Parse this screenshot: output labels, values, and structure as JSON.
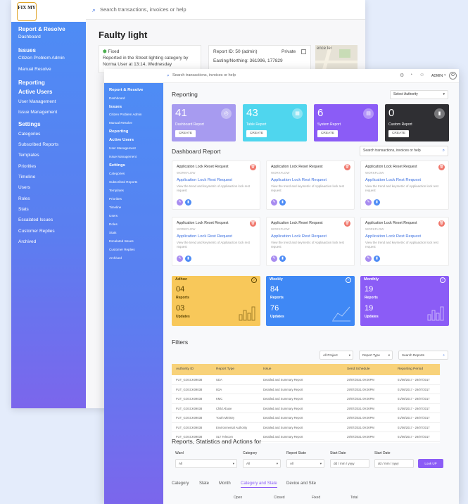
{
  "back": {
    "logo": "FIX MY",
    "search_placeholder": "Search transactions, invoices or help",
    "sidebar": [
      {
        "label": "Report & Resolve",
        "heading": true
      },
      {
        "label": "Dashboard",
        "heading": false
      },
      {
        "label": "Issues",
        "heading": true
      },
      {
        "label": "Citizen Problem Admin",
        "heading": false
      },
      {
        "label": "Manual Resolve",
        "heading": false
      },
      {
        "label": "Reporting",
        "heading": true
      },
      {
        "label": "Active Users",
        "heading": true
      },
      {
        "label": "User Management",
        "heading": false
      },
      {
        "label": "Issue Management",
        "heading": false
      },
      {
        "label": "Settings",
        "heading": true
      },
      {
        "label": "Categories",
        "heading": false
      },
      {
        "label": "Subscribed Reports",
        "heading": false
      },
      {
        "label": "Templates",
        "heading": false
      },
      {
        "label": "Priorities",
        "heading": false
      },
      {
        "label": "Timeline",
        "heading": false
      },
      {
        "label": "Users",
        "heading": false
      },
      {
        "label": "Roles",
        "heading": false
      },
      {
        "label": "Stats",
        "heading": false
      },
      {
        "label": "Escalated Issues",
        "heading": false
      },
      {
        "label": "Customer Replies",
        "heading": false
      },
      {
        "label": "Archived",
        "heading": false
      }
    ],
    "page_title": "Faulty light",
    "status": "Fixed",
    "report_text": "Reported in the Street lighting category by Norma User at 13:14, Wednesday",
    "report_id": "Report ID: 50 (admin)",
    "private_label": "Private",
    "easting": "Easting/Northing: 361996, 177829",
    "map_text": "ence ter"
  },
  "front": {
    "search_placeholder": "Search transactions, invoices or help",
    "admin_label": "ADMIN",
    "sidebar": [
      {
        "label": "Report & Resolve",
        "heading": true
      },
      {
        "label": "Dashboard",
        "heading": false
      },
      {
        "label": "Issues",
        "heading": true
      },
      {
        "label": "Citizen Problem Admin",
        "heading": false
      },
      {
        "label": "Manual Resolve",
        "heading": false
      },
      {
        "label": "Reporting",
        "heading": true
      },
      {
        "label": "Active Users",
        "heading": true
      },
      {
        "label": "User Management",
        "heading": false
      },
      {
        "label": "Issue Management",
        "heading": false
      },
      {
        "label": "Settings",
        "heading": true
      },
      {
        "label": "Categories",
        "heading": false
      },
      {
        "label": "Subscribed Reports",
        "heading": false
      },
      {
        "label": "Templates",
        "heading": false
      },
      {
        "label": "Priorities",
        "heading": false
      },
      {
        "label": "Timeline",
        "heading": false
      },
      {
        "label": "Users",
        "heading": false
      },
      {
        "label": "Roles",
        "heading": false
      },
      {
        "label": "Stats",
        "heading": false
      },
      {
        "label": "Escalated Issues",
        "heading": false
      },
      {
        "label": "Customer Replies",
        "heading": false
      },
      {
        "label": "Archived",
        "heading": false
      }
    ],
    "reporting_title": "Reporting",
    "authority_select": "Select Authority",
    "report_cards": [
      {
        "num": "41",
        "label": "Dashboard Report",
        "btn": "CREATE",
        "color": "#a79bf0",
        "icon": "gauge-icon"
      },
      {
        "num": "43",
        "label": "Table Report",
        "btn": "CREATE",
        "color": "#4fd6ee",
        "icon": "table-icon"
      },
      {
        "num": "6",
        "label": "System Report",
        "btn": "CREATE",
        "color": "#8b5cf6",
        "icon": "system-icon"
      },
      {
        "num": "0",
        "label": "Custom Report",
        "btn": "CREATE",
        "color": "#2f2f33",
        "icon": "chart-icon"
      }
    ],
    "dashboard_title": "Dashboard Report",
    "dashboard_search": "Search transactions, invoices or help",
    "dash_cards": [
      {
        "title": "Application Lock Reset Request",
        "tag": "WORKFLOW",
        "link": "Application Lock Rest Request",
        "desc": "View the trend and keymetric of Appliaaction lock rest request"
      },
      {
        "title": "Application Lock Reset Request",
        "tag": "WORKFLOW",
        "link": "Application Lock Rest Request",
        "desc": "View the trend and keymetric of Appliaaction lock rest request"
      },
      {
        "title": "Application Lock Reset Request",
        "tag": "WORKFLOW",
        "link": "Application Lock Rest Request",
        "desc": "View the trend and keymetric of Appliaaction lock rest request"
      },
      {
        "title": "Application Lock Reset Request",
        "tag": "WORKFLOW",
        "link": "Application Lock Rest Request",
        "desc": "View the trend and keymetric of Appliaaction lock rest request"
      },
      {
        "title": "Application Lock Reset Request",
        "tag": "WORKFLOW",
        "link": "Application Lock Rest Request",
        "desc": "View the trend and keymetric of Appliaaction lock rest request"
      },
      {
        "title": "Application Lock Reset Request",
        "tag": "WORKFLOW",
        "link": "Application Lock Rest Request",
        "desc": "View the trend and keymetric of Appliaaction lock rest request"
      }
    ],
    "period_cards": [
      {
        "name": "Adhoc",
        "reports": "04",
        "updates": "03",
        "reports_label": "Reports",
        "updates_label": "Updates",
        "color": "#f8c85a",
        "text": "#5a4300"
      },
      {
        "name": "Weekly",
        "reports": "84",
        "updates": "76",
        "reports_label": "Reports",
        "updates_label": "Updates",
        "color": "#3f88f5",
        "text": "#ffffff"
      },
      {
        "name": "Monthly",
        "reports": "19",
        "updates": "19",
        "reports_label": "Reports",
        "updates_label": "Updates",
        "color": "#8b5cf6",
        "text": "#ffffff"
      }
    ],
    "filters_title": "Filters",
    "filter_project": "All Project",
    "filter_report_type": "Report Type",
    "filter_search": "Search Reports",
    "table_headers": [
      "Authority ID",
      "Report Type",
      "Issue",
      "Send Schedule",
      "Reporting Period"
    ],
    "table_rows": [
      [
        "FUT_GOXCK09038",
        "UDA",
        "Detailed and Summary Report",
        "29/07/2021 09:00PM",
        "01/06/2017 - 29/07/2017"
      ],
      [
        "FUT_GOXCK09038",
        "IIDA",
        "Detailed and Summary Report",
        "29/07/2021 09:00PM",
        "01/06/2017 - 29/07/2017"
      ],
      [
        "FUT_GOXCK09038",
        "KMC",
        "Detailed and Summary Report",
        "29/07/2021 09:00PM",
        "01/06/2017 - 29/07/2017"
      ],
      [
        "FUT_GOXCK09038",
        "Child Abuse",
        "Detailed and Summary Report",
        "29/07/2021 09:00PM",
        "01/06/2017 - 29/07/2017"
      ],
      [
        "FUT_GOXCK09038",
        "Youth Ministry",
        "Detailed and Summary Report",
        "29/07/2021 09:00PM",
        "01/06/2017 - 29/07/2017"
      ],
      [
        "FUT_GOXCK09038",
        "Environmental Authority",
        "Detailed and Summary Report",
        "29/07/2021 09:00PM",
        "01/06/2017 - 29/07/2017"
      ],
      [
        "FUT_GOXCK09038",
        "SLT Telecom",
        "Detailed and Summary Report",
        "29/07/2021 09:00PM",
        "01/06/2017 - 29/07/2017"
      ]
    ],
    "stats_title": "Reports, Statistics and Actions for",
    "form": {
      "ward_label": "Ward",
      "ward_value": "All",
      "category_label": "Category",
      "category_value": "All",
      "state_label": "Report State",
      "state_value": "All",
      "start_label": "Start Date",
      "start_value": "dd / mm / yyyy",
      "end_label": "Start Date",
      "end_value": "dd / mm / yyyy",
      "button": "Look UP"
    },
    "tabs": [
      "Category",
      "State",
      "Month",
      "Category and State",
      "Device and Site"
    ],
    "active_tab": 3,
    "subheaders": [
      "Open",
      "Closed",
      "Fixed",
      "Total"
    ]
  }
}
